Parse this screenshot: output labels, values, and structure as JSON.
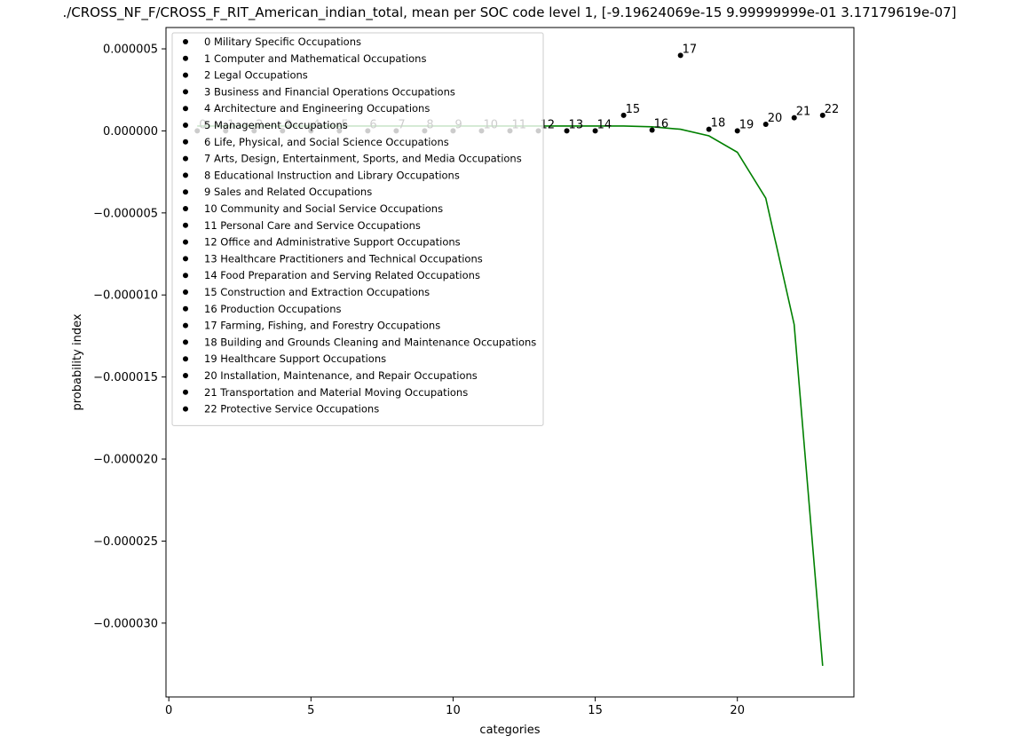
{
  "chart_data": {
    "type": "scatter",
    "title": "./CROSS_NF_F/CROSS_F_RIT_American_indian_total, mean per SOC code level 1, [-9.19624069e-15  9.99999999e-01  3.17179619e-07]",
    "xlabel": "categories",
    "ylabel": "probability index",
    "xlim": [
      -0.1,
      24.1
    ],
    "ylim": [
      -3.45e-05,
      6.3e-06
    ],
    "x_ticks": [
      0,
      5,
      10,
      15,
      20
    ],
    "x_tick_labels": [
      "0",
      "5",
      "10",
      "15",
      "20"
    ],
    "y_ticks": [
      5e-06,
      0,
      -5e-06,
      -1e-05,
      -1.5e-05,
      -2e-05,
      -2.5e-05,
      -3e-05
    ],
    "y_tick_labels": [
      "0.000005",
      "0.000000",
      "−0.000005",
      "−0.000010",
      "−0.000015",
      "−0.000020",
      "−0.000025",
      "−0.000030"
    ],
    "grid": false,
    "legend_placement": "upper-left",
    "points": [
      {
        "x": 1,
        "y": 0.0,
        "label": "0"
      },
      {
        "x": 2,
        "y": 0.0,
        "label": "1"
      },
      {
        "x": 3,
        "y": 0.0,
        "label": "2"
      },
      {
        "x": 4,
        "y": 0.0,
        "label": "3"
      },
      {
        "x": 5,
        "y": 0.0,
        "label": "4"
      },
      {
        "x": 6,
        "y": 0.0,
        "label": "5"
      },
      {
        "x": 7,
        "y": 0.0,
        "label": "6"
      },
      {
        "x": 8,
        "y": 0.0,
        "label": "7"
      },
      {
        "x": 9,
        "y": 0.0,
        "label": "8"
      },
      {
        "x": 10,
        "y": 0.0,
        "label": "9"
      },
      {
        "x": 11,
        "y": 0.0,
        "label": "10"
      },
      {
        "x": 12,
        "y": 0.0,
        "label": "11"
      },
      {
        "x": 13,
        "y": 0.0,
        "label": "12"
      },
      {
        "x": 14,
        "y": 0.0,
        "label": "13"
      },
      {
        "x": 15,
        "y": 0.0,
        "label": "14"
      },
      {
        "x": 16,
        "y": 9.5e-07,
        "label": "15"
      },
      {
        "x": 17,
        "y": 5e-08,
        "label": "16"
      },
      {
        "x": 18,
        "y": 4.6e-06,
        "label": "17"
      },
      {
        "x": 19,
        "y": 1e-07,
        "label": "18"
      },
      {
        "x": 20,
        "y": 0.0,
        "label": "19"
      },
      {
        "x": 21,
        "y": 4e-07,
        "label": "20"
      },
      {
        "x": 22,
        "y": 8e-07,
        "label": "21"
      },
      {
        "x": 23,
        "y": 9.5e-07,
        "label": "22"
      }
    ],
    "fit_line": {
      "x": [
        1,
        2,
        3,
        4,
        5,
        6,
        7,
        8,
        9,
        10,
        11,
        12,
        13,
        14,
        15,
        16,
        17,
        18,
        19,
        20,
        21,
        22,
        23
      ],
      "y": [
        3e-07,
        3e-07,
        3e-07,
        3e-07,
        3e-07,
        3e-07,
        3e-07,
        3e-07,
        3e-07,
        3e-07,
        3e-07,
        3e-07,
        3e-07,
        3e-07,
        3e-07,
        3e-07,
        2.5e-07,
        1e-07,
        -3e-07,
        -1.3e-06,
        -4.1e-06,
        -1.18e-05,
        -3.26e-05
      ]
    },
    "colors": {
      "points": "#000000",
      "fit_line": "#008000",
      "legend_frame": "#cccccc"
    },
    "legend": [
      "0 Military Specific Occupations",
      "1 Computer and Mathematical Occupations",
      "2 Legal Occupations",
      "3 Business and Financial Operations Occupations",
      "4 Architecture and Engineering Occupations",
      "5 Management Occupations",
      "6 Life, Physical, and Social Science Occupations",
      "7 Arts, Design, Entertainment, Sports, and Media Occupations",
      "8 Educational Instruction and Library Occupations",
      "9 Sales and Related Occupations",
      "10 Community and Social Service Occupations",
      "11 Personal Care and Service Occupations",
      "12 Office and Administrative Support Occupations",
      "13 Healthcare Practitioners and Technical Occupations",
      "14 Food Preparation and Serving Related Occupations",
      "15 Construction and Extraction Occupations",
      "16 Production Occupations",
      "17 Farming, Fishing, and Forestry Occupations",
      "18 Building and Grounds Cleaning and Maintenance Occupations",
      "19 Healthcare Support Occupations",
      "20 Installation, Maintenance, and Repair Occupations",
      "21 Transportation and Material Moving Occupations",
      "22 Protective Service Occupations"
    ]
  }
}
